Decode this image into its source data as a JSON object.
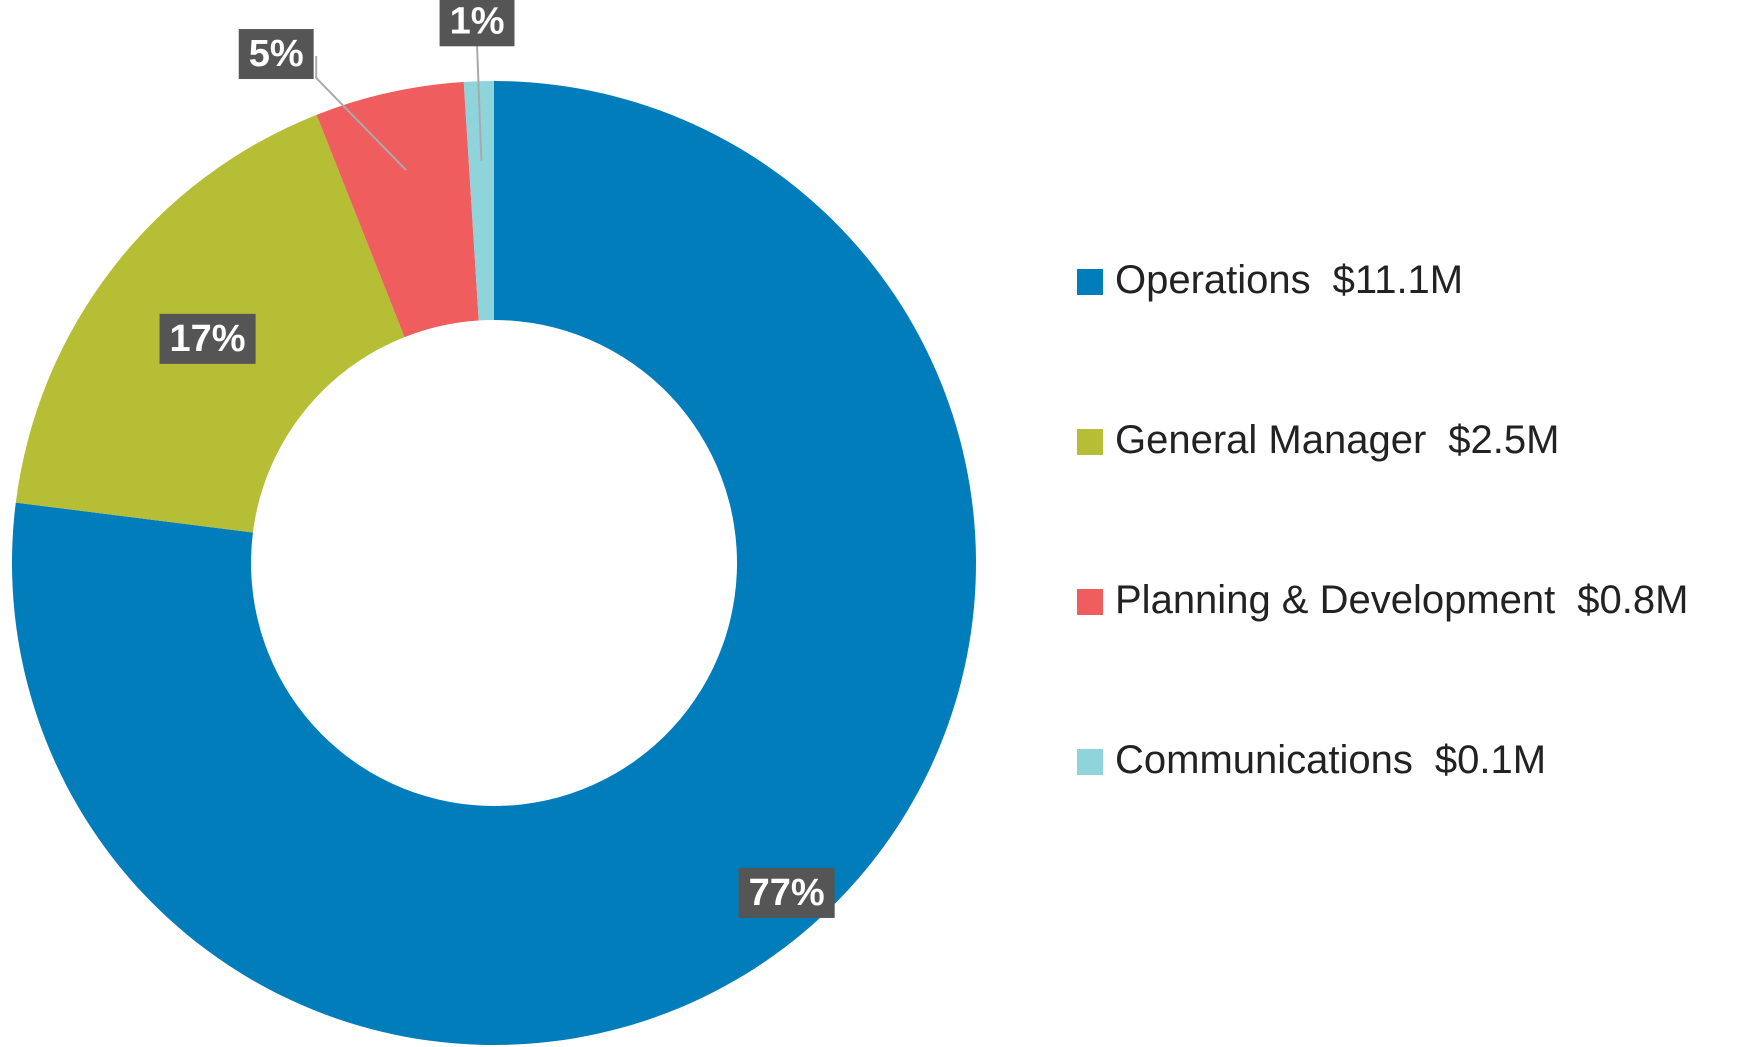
{
  "chart_data": {
    "type": "donut",
    "categories": [
      "Operations",
      "General Manager",
      "Planning & Development",
      "Communications"
    ],
    "amount_labels": [
      "$11.1M",
      "$2.5M",
      "$0.8M",
      "$0.1M"
    ],
    "values": [
      77,
      17,
      5,
      1
    ],
    "value_labels": [
      "77%",
      "17%",
      "5%",
      "1%"
    ],
    "colors": [
      "#007dba",
      "#b5be35",
      "#f05d5e",
      "#8fd3db"
    ],
    "legend": "right"
  }
}
